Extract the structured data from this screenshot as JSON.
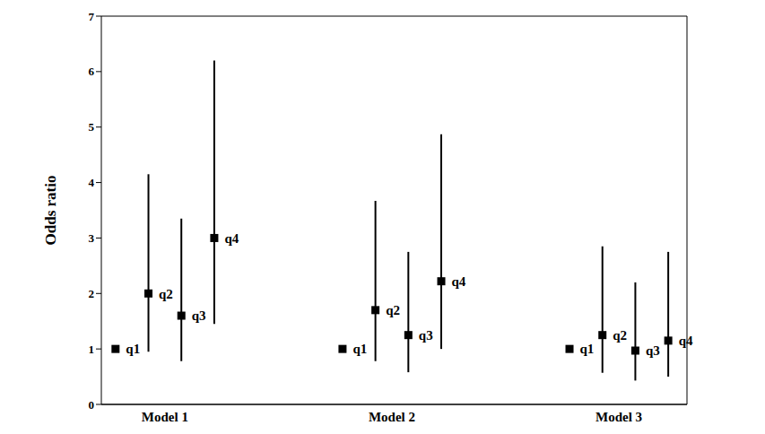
{
  "chart_data": {
    "type": "scatter",
    "y_label": "Odds ratio",
    "categories": [
      "Model 1",
      "Model 2",
      "Model 3"
    ],
    "ylim": [
      0,
      7
    ],
    "yticks": [
      0,
      1,
      2,
      3,
      4,
      5,
      6,
      7
    ],
    "grid": true,
    "series": [
      {
        "name": "q1",
        "color": "#000000",
        "marker": "square",
        "values": [
          1.0,
          1.0,
          1.0
        ],
        "ci_lower": [
          null,
          null,
          null
        ],
        "ci_upper": [
          null,
          null,
          null
        ]
      },
      {
        "name": "q2",
        "color": "#000000",
        "marker": "square",
        "values": [
          2.0,
          1.7,
          1.25
        ],
        "ci_lower": [
          0.95,
          0.78,
          0.57
        ],
        "ci_upper": [
          4.15,
          3.67,
          2.85
        ]
      },
      {
        "name": "q3",
        "color": "#000000",
        "marker": "square",
        "values": [
          1.6,
          1.25,
          0.97
        ],
        "ci_lower": [
          0.78,
          0.58,
          0.43
        ],
        "ci_upper": [
          3.35,
          2.75,
          2.2
        ]
      },
      {
        "name": "q4",
        "color": "#000000",
        "marker": "square",
        "values": [
          3.0,
          2.22,
          1.15
        ],
        "ci_lower": [
          1.45,
          1.0,
          0.5
        ],
        "ci_upper": [
          6.2,
          4.87,
          2.75
        ]
      }
    ]
  }
}
